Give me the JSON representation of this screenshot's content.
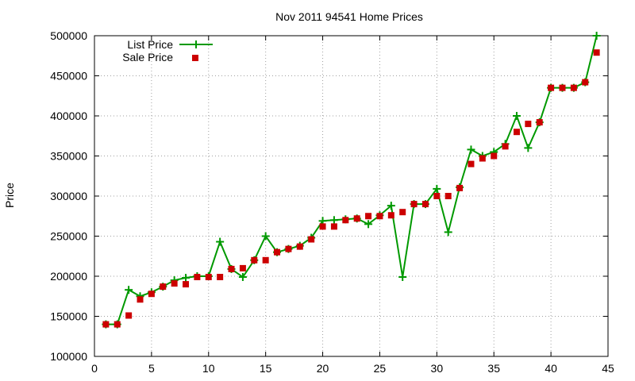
{
  "chart_data": {
    "type": "line",
    "title": "Nov 2011 94541 Home Prices",
    "xlabel": "",
    "ylabel": "Price",
    "xlim": [
      0,
      45
    ],
    "ylim": [
      100000,
      500000
    ],
    "xticks": [
      0,
      5,
      10,
      15,
      20,
      25,
      30,
      35,
      40,
      45
    ],
    "yticks": [
      100000,
      150000,
      200000,
      250000,
      300000,
      350000,
      400000,
      450000,
      500000
    ],
    "grid": true,
    "legend_position": "top-left",
    "x": [
      1,
      2,
      3,
      4,
      5,
      6,
      7,
      8,
      9,
      10,
      11,
      12,
      13,
      14,
      15,
      16,
      17,
      18,
      19,
      20,
      21,
      22,
      23,
      24,
      25,
      26,
      27,
      28,
      29,
      30,
      31,
      32,
      33,
      34,
      35,
      36,
      37,
      38,
      39,
      40,
      41,
      42,
      43,
      44
    ],
    "series": [
      {
        "name": "List Price",
        "style": "linespoints",
        "marker": "plus",
        "color": "#009900",
        "values": [
          140000,
          140000,
          183000,
          175000,
          180000,
          187000,
          195000,
          198000,
          200000,
          200000,
          243000,
          209000,
          199000,
          220000,
          250000,
          230000,
          234000,
          238000,
          248000,
          269000,
          270000,
          271000,
          272000,
          265000,
          276000,
          288000,
          199000,
          290000,
          290000,
          309000,
          255000,
          311000,
          358000,
          350000,
          355000,
          365000,
          400000,
          360000,
          392000,
          435000,
          435000,
          435000,
          442000,
          500000
        ]
      },
      {
        "name": "Sale Price",
        "style": "points",
        "marker": "square",
        "color": "#cc0000",
        "values": [
          140000,
          140000,
          151000,
          171000,
          178000,
          187000,
          191000,
          190000,
          199000,
          199000,
          199000,
          209000,
          210000,
          220000,
          220000,
          230000,
          234000,
          237000,
          246000,
          262000,
          262000,
          270000,
          272000,
          275000,
          275000,
          276000,
          280000,
          290000,
          290000,
          300000,
          300000,
          310000,
          340000,
          347000,
          350000,
          362000,
          380000,
          390000,
          392000,
          435000,
          435000,
          435000,
          442000,
          479000
        ]
      }
    ]
  }
}
